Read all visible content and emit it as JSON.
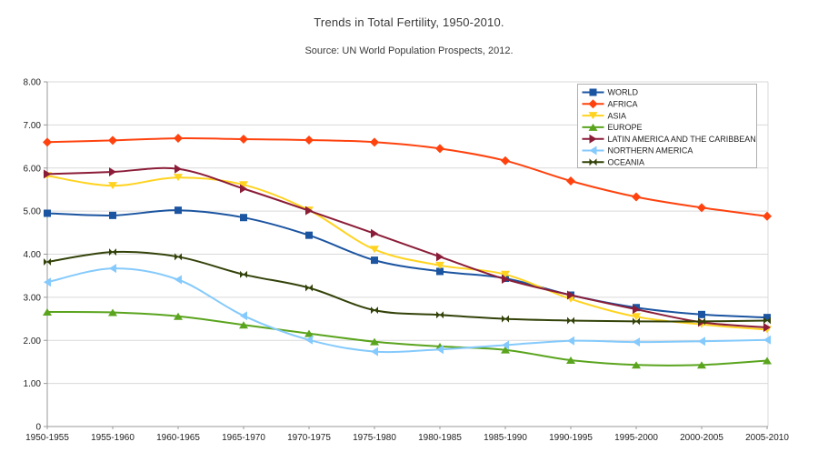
{
  "chart_data": {
    "type": "line",
    "title": "Trends in Total Fertility, 1950-2010.",
    "subtitle": "Source: UN World Population Prospects, 2012.",
    "xlabel": "",
    "ylabel": "",
    "ylim": [
      0,
      8
    ],
    "grid": true,
    "legend_position": "top-right-inside",
    "y_tick_labels": [
      "8.00",
      "7.00",
      "6.00",
      "5.00",
      "4.00",
      "3.00",
      "2.00",
      "1.00",
      "0"
    ],
    "categories": [
      "1950-1955",
      "1955-1960",
      "1960-1965",
      "1965-1970",
      "1970-1975",
      "1975-1980",
      "1980-1985",
      "1985-1990",
      "1990-1995",
      "1995-2000",
      "2000-2005",
      "2005-2010"
    ],
    "series": [
      {
        "name": "WORLD",
        "color": "#1b54a0",
        "marker": "square",
        "values": [
          4.95,
          4.9,
          5.02,
          4.85,
          4.44,
          3.86,
          3.6,
          3.44,
          3.05,
          2.76,
          2.6,
          2.53
        ]
      },
      {
        "name": "AFRICA",
        "color": "#ff420e",
        "marker": "diamond",
        "values": [
          6.6,
          6.64,
          6.69,
          6.67,
          6.65,
          6.6,
          6.45,
          6.17,
          5.7,
          5.33,
          5.08,
          4.88
        ]
      },
      {
        "name": "ASIA",
        "color": "#ffd320",
        "marker": "arrow-down",
        "values": [
          5.82,
          5.59,
          5.78,
          5.61,
          5.02,
          4.11,
          3.74,
          3.53,
          2.96,
          2.55,
          2.37,
          2.25
        ]
      },
      {
        "name": "EUROPE",
        "color": "#5aa41e",
        "marker": "arrow-up",
        "values": [
          2.66,
          2.65,
          2.56,
          2.36,
          2.16,
          1.97,
          1.86,
          1.78,
          1.54,
          1.43,
          1.43,
          1.53
        ]
      },
      {
        "name": "LATIN AMERICA AND THE CARIBBEAN",
        "color": "#8b1d38",
        "marker": "arrow-right",
        "values": [
          5.86,
          5.91,
          5.98,
          5.52,
          5.01,
          4.48,
          3.94,
          3.42,
          3.05,
          2.72,
          2.42,
          2.3
        ]
      },
      {
        "name": "NORTHERN AMERICA",
        "color": "#85cafc",
        "marker": "arrow-left",
        "values": [
          3.35,
          3.67,
          3.41,
          2.57,
          2.01,
          1.74,
          1.79,
          1.89,
          1.99,
          1.96,
          1.98,
          2.01
        ]
      },
      {
        "name": "OCEANIA",
        "color": "#334209",
        "marker": "bowtie",
        "values": [
          3.82,
          4.05,
          3.94,
          3.53,
          3.22,
          2.7,
          2.59,
          2.5,
          2.46,
          2.44,
          2.44,
          2.46
        ]
      }
    ],
    "colors": {
      "background": "#ffffff",
      "gridline": "#d9d9d9",
      "axis": "#999999",
      "legend_border": "#b0b0b0",
      "tick_text": "#222222",
      "legend_text": "#222222"
    }
  }
}
